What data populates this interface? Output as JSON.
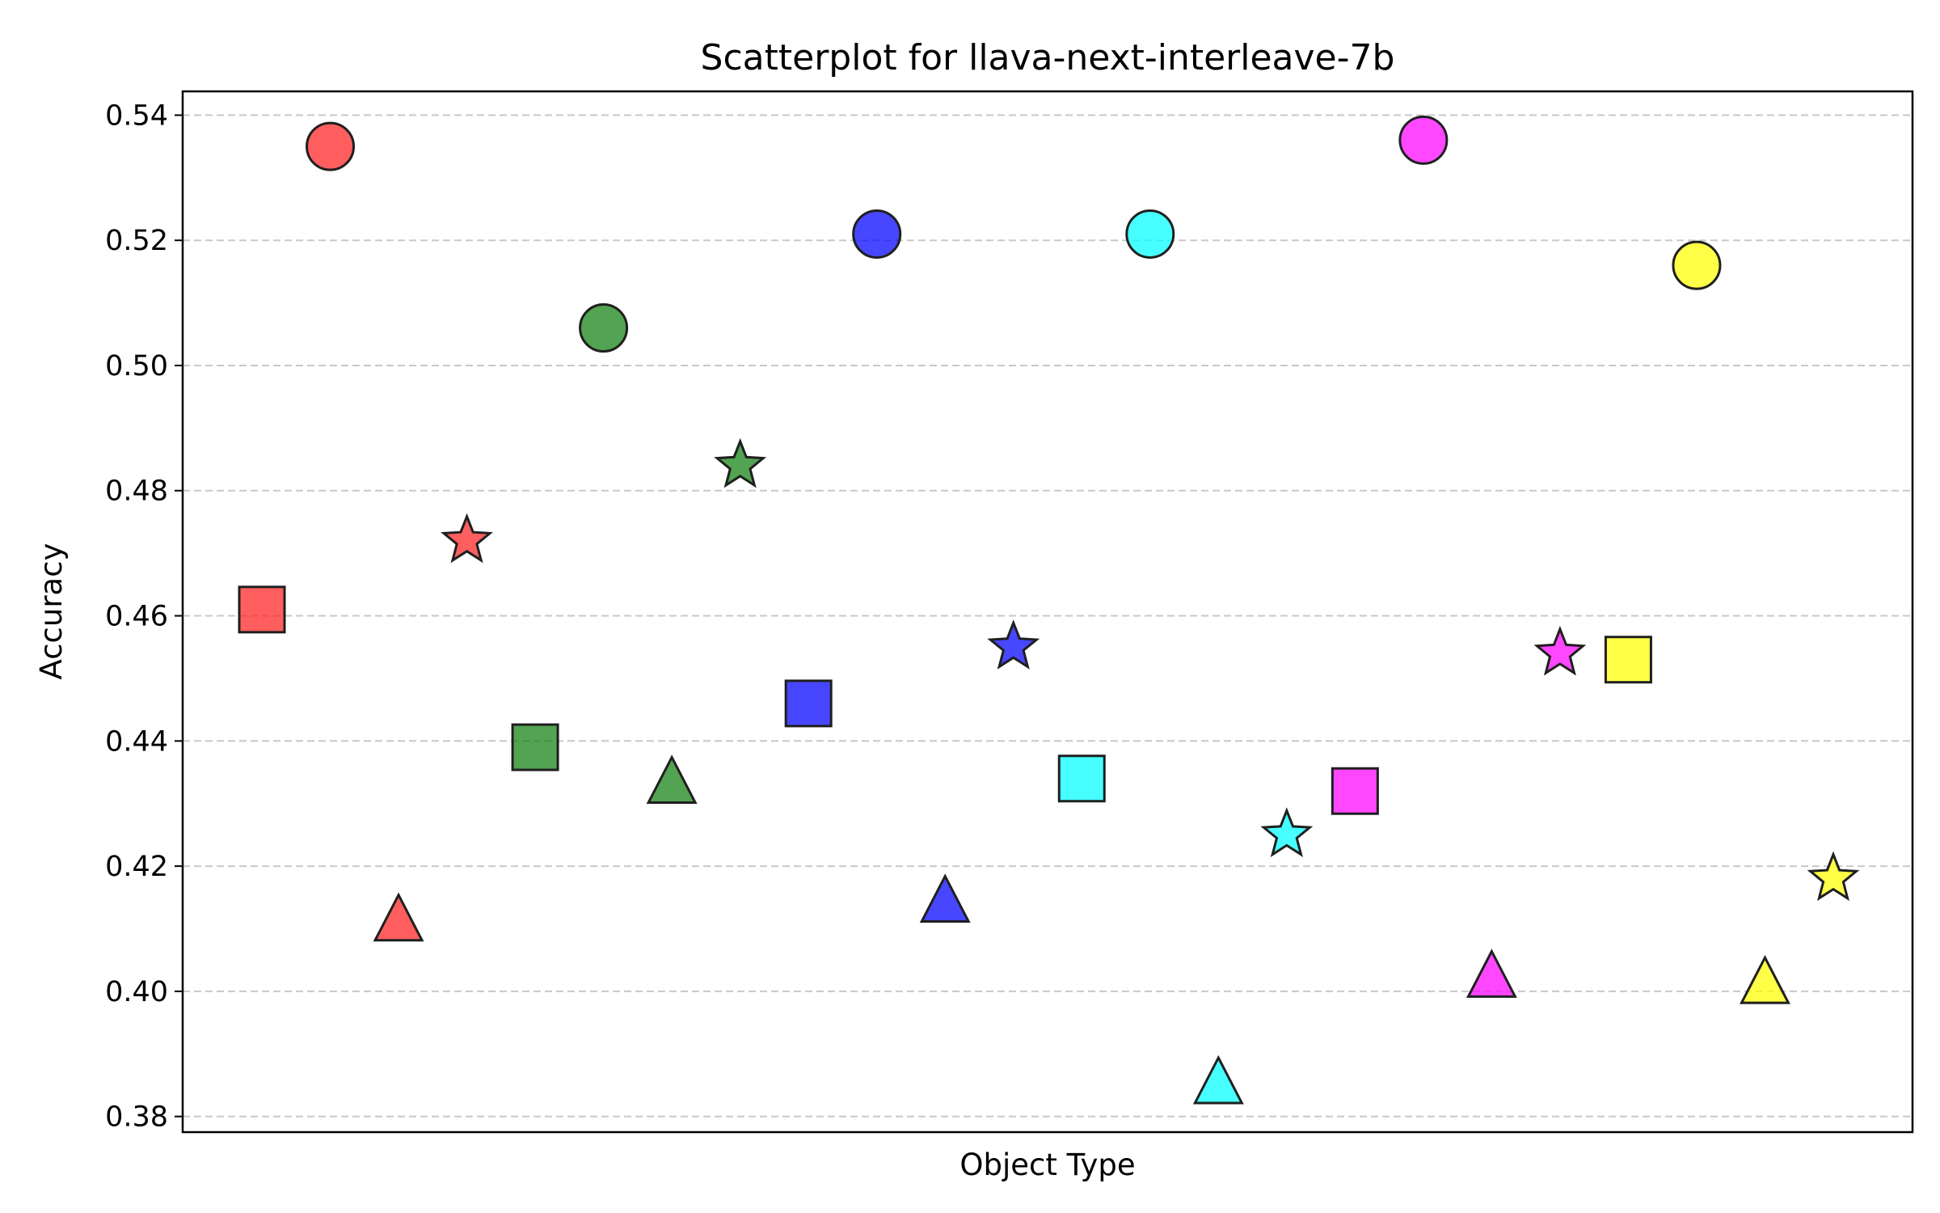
{
  "chart_data": {
    "type": "scatter",
    "title": "Scatterplot for llava-next-interleave-7b",
    "xlabel": "Object Type",
    "ylabel": "Accuracy",
    "ylim": [
      0.3775,
      0.5438
    ],
    "yticks": [
      "0.38",
      "0.40",
      "0.42",
      "0.44",
      "0.46",
      "0.48",
      "0.50",
      "0.52",
      "0.54"
    ],
    "ytick_values": [
      0.38,
      0.4,
      0.42,
      0.44,
      0.46,
      0.48,
      0.5,
      0.52,
      0.54
    ],
    "x_ticks_visible": false,
    "grid": "horizontal dashed",
    "legend": "none",
    "points": [
      {
        "index": 0,
        "marker": "square",
        "color": "#ff2020",
        "y": 0.461
      },
      {
        "index": 1,
        "marker": "circle",
        "color": "#ff2020",
        "y": 0.535
      },
      {
        "index": 2,
        "marker": "triangle",
        "color": "#ff2020",
        "y": 0.411
      },
      {
        "index": 3,
        "marker": "star",
        "color": "#ff2020",
        "y": 0.472
      },
      {
        "index": 4,
        "marker": "square",
        "color": "#0f800f",
        "y": 0.439
      },
      {
        "index": 5,
        "marker": "circle",
        "color": "#0f800f",
        "y": 0.506
      },
      {
        "index": 6,
        "marker": "triangle",
        "color": "#0f800f",
        "y": 0.433
      },
      {
        "index": 7,
        "marker": "star",
        "color": "#0f800f",
        "y": 0.484
      },
      {
        "index": 8,
        "marker": "square",
        "color": "#0000ff",
        "y": 0.446
      },
      {
        "index": 9,
        "marker": "circle",
        "color": "#0000ff",
        "y": 0.521
      },
      {
        "index": 10,
        "marker": "triangle",
        "color": "#0000ff",
        "y": 0.414
      },
      {
        "index": 11,
        "marker": "star",
        "color": "#0000ff",
        "y": 0.455
      },
      {
        "index": 12,
        "marker": "square",
        "color": "#00ffff",
        "y": 0.434
      },
      {
        "index": 13,
        "marker": "circle",
        "color": "#00ffff",
        "y": 0.521
      },
      {
        "index": 14,
        "marker": "triangle",
        "color": "#00ffff",
        "y": 0.385
      },
      {
        "index": 15,
        "marker": "star",
        "color": "#00ffff",
        "y": 0.425
      },
      {
        "index": 16,
        "marker": "square",
        "color": "#ff00ff",
        "y": 0.432
      },
      {
        "index": 17,
        "marker": "circle",
        "color": "#ff00ff",
        "y": 0.536
      },
      {
        "index": 18,
        "marker": "triangle",
        "color": "#ff00ff",
        "y": 0.402
      },
      {
        "index": 19,
        "marker": "star",
        "color": "#ff00ff",
        "y": 0.454
      },
      {
        "index": 20,
        "marker": "square",
        "color": "#ffff00",
        "y": 0.453
      },
      {
        "index": 21,
        "marker": "circle",
        "color": "#ffff00",
        "y": 0.516
      },
      {
        "index": 22,
        "marker": "triangle",
        "color": "#ffff00",
        "y": 0.401
      },
      {
        "index": 23,
        "marker": "star",
        "color": "#ffff00",
        "y": 0.418
      }
    ]
  }
}
